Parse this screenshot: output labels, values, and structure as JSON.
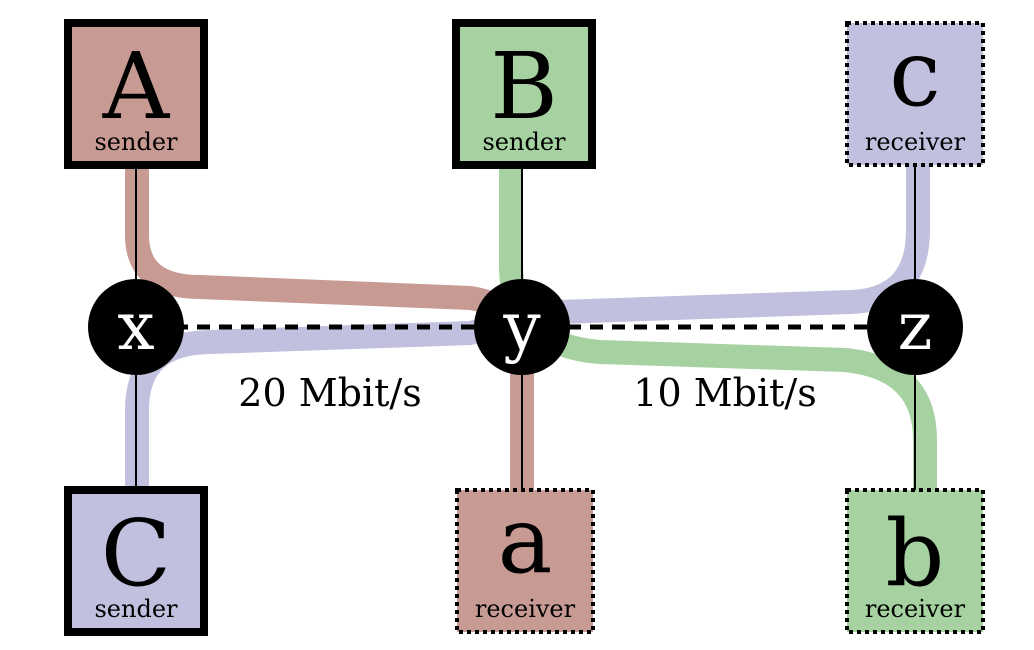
{
  "colors": {
    "red": "#c89a94",
    "green": "#a6d1a0",
    "blue": "#c1c0de",
    "node": "#000000",
    "node_text": "#ffffff"
  },
  "hosts": {
    "A": {
      "letter": "A",
      "role": "sender"
    },
    "B": {
      "letter": "B",
      "role": "sender"
    },
    "c": {
      "letter": "c",
      "role": "receiver"
    },
    "C": {
      "letter": "C",
      "role": "sender"
    },
    "a": {
      "letter": "a",
      "role": "receiver"
    },
    "b": {
      "letter": "b",
      "role": "receiver"
    }
  },
  "nodes": {
    "x": "x",
    "y": "y",
    "z": "z"
  },
  "links": {
    "xy_rate": "20 Mbit/s",
    "yz_rate": "10 Mbit/s"
  }
}
